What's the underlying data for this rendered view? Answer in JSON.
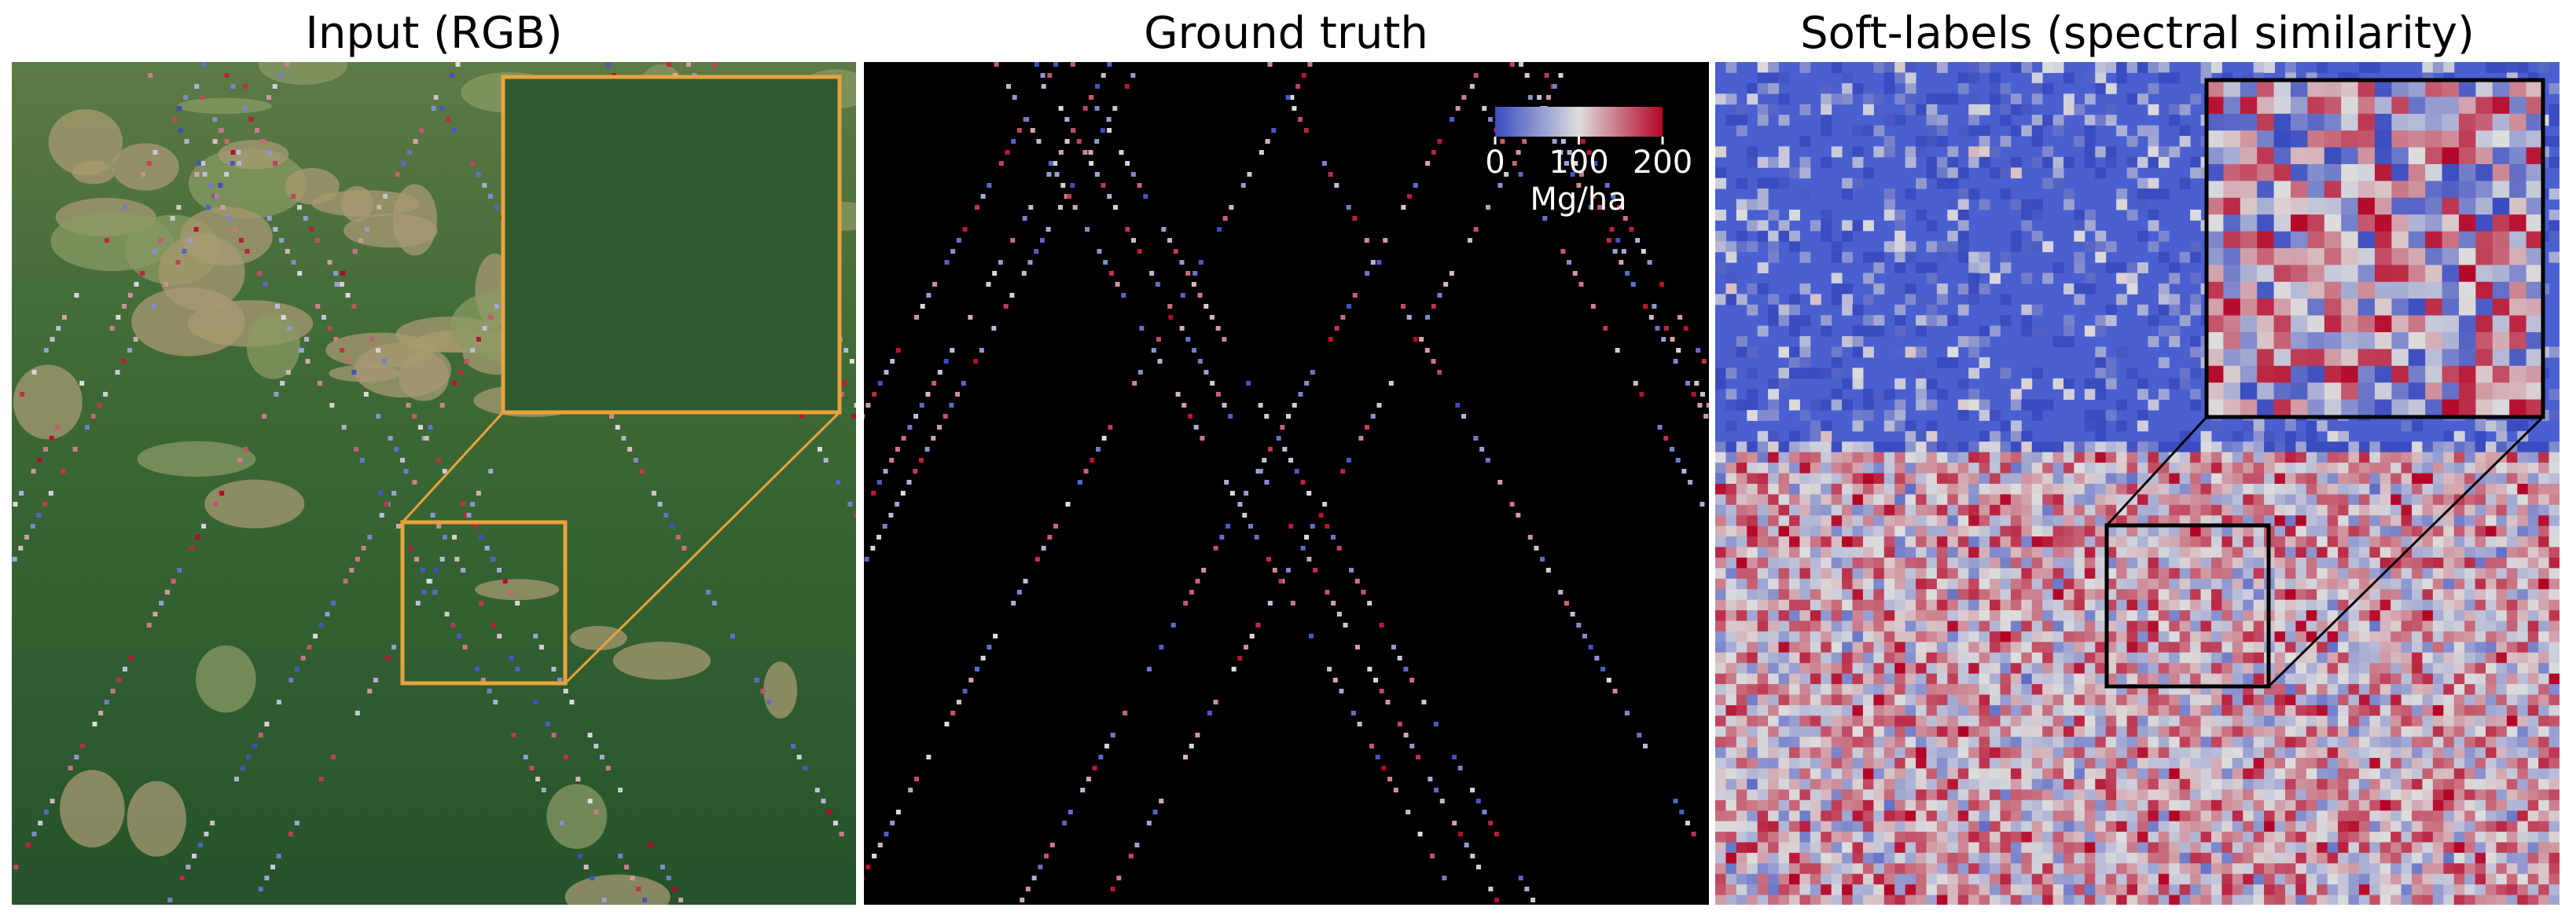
{
  "panels": [
    {
      "title": "Input (RGB)"
    },
    {
      "title": "Ground truth"
    },
    {
      "title": "Soft-labels (spectral similarity)"
    }
  ],
  "colorbar": {
    "label": "Mg/ha",
    "lim": [
      0,
      200
    ],
    "ticks": [
      0,
      100,
      200
    ]
  }
}
